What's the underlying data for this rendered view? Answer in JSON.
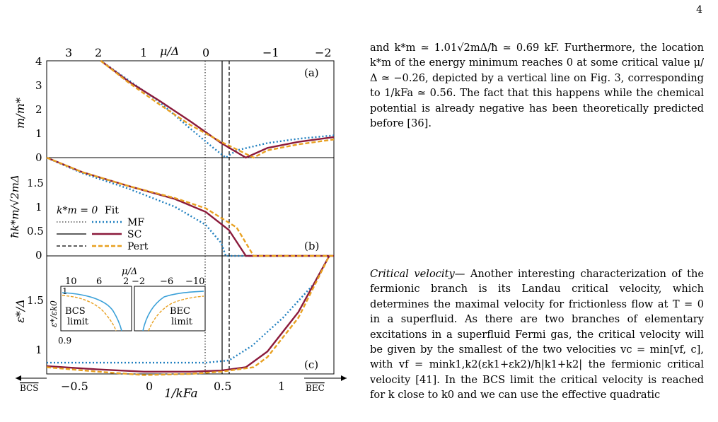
{
  "page_number": "4",
  "figure": {
    "top_axis": {
      "label": "μ/Δ",
      "ticks": [
        "3",
        "2",
        "1",
        "0",
        "−1",
        "−2"
      ],
      "tick_values": [
        3,
        2,
        1,
        0,
        -1,
        -2
      ]
    },
    "bottom_axis": {
      "label": "1/kFa",
      "ticks": [
        "−0.5",
        "0",
        "0.5",
        "1"
      ],
      "tick_values": [
        -0.5,
        0,
        0.5,
        1
      ],
      "bcs_label": "BCS",
      "bec_label": "BEC"
    },
    "panel_a": {
      "tag": "(a)",
      "ylabel": "m/m*",
      "yticks": [
        "0",
        "1",
        "2",
        "3",
        "4"
      ]
    },
    "panel_b": {
      "tag": "(b)",
      "ylabel": "ħk*m/√2mΔ",
      "yticks": [
        "0",
        "0.5",
        "1",
        "1.5"
      ],
      "legend": {
        "col_header_left": "k*m = 0",
        "col_header_right": "Fit",
        "entries": [
          "MF",
          "SC",
          "Pert"
        ]
      }
    },
    "panel_c": {
      "tag": "(c)",
      "ylabel": "ε*/Δ",
      "yticks": [
        "1",
        "1.5"
      ],
      "inset": {
        "top_label": "μ/Δ",
        "ticks": [
          "10",
          "6",
          "2",
          "−2",
          "−6",
          "−10"
        ],
        "ylabel": "ε*/εk0",
        "yticks": [
          "1",
          "0.9"
        ],
        "left_box_label": [
          "BCS",
          "limit"
        ],
        "right_box_label": [
          "BEC",
          "limit"
        ]
      }
    },
    "colors": {
      "MF": "#1f7fbf",
      "SC": "#8b1a3b",
      "Pert": "#e8a020",
      "inset_fit": "#3aa0d8"
    }
  },
  "chart_data": [
    {
      "type": "line",
      "panel": "a",
      "xlabel": "1/kFa",
      "ylabel": "m/m*",
      "xlim": [
        -0.73,
        1.13
      ],
      "ylim": [
        0,
        4
      ],
      "vlines": {
        "dotted": 0.43,
        "solid": 0.56,
        "dashed": 0.61
      },
      "series": [
        {
          "name": "MF",
          "x": [
            -0.38,
            -0.2,
            0,
            0.2,
            0.35,
            0.43,
            0.5,
            0.7,
            0.9,
            1.13
          ],
          "y": [
            4,
            3.2,
            2.3,
            1.2,
            0.4,
            0.0,
            0.3,
            0.6,
            0.78,
            0.92
          ]
        },
        {
          "name": "SC",
          "x": [
            -0.38,
            -0.2,
            0,
            0.2,
            0.4,
            0.56,
            0.7,
            0.9,
            1.13
          ],
          "y": [
            4,
            3.15,
            2.35,
            1.5,
            0.6,
            0.0,
            0.4,
            0.65,
            0.85
          ]
        },
        {
          "name": "Pert",
          "x": [
            -0.38,
            -0.2,
            0,
            0.2,
            0.4,
            0.61,
            0.7,
            0.9,
            1.13
          ],
          "y": [
            4,
            3.1,
            2.2,
            1.35,
            0.65,
            0.0,
            0.3,
            0.55,
            0.75
          ]
        }
      ]
    },
    {
      "type": "line",
      "panel": "b",
      "xlabel": "1/kFa",
      "ylabel": "ħk*m/√2mΔ",
      "xlim": [
        -0.73,
        1.13
      ],
      "ylim": [
        0,
        1.9
      ],
      "series": [
        {
          "name": "MF",
          "x": [
            -0.73,
            -0.5,
            -0.2,
            0.1,
            0.3,
            0.4,
            0.43,
            1.13
          ],
          "y": [
            1.9,
            1.6,
            1.3,
            0.95,
            0.6,
            0.25,
            0.0,
            0.0
          ]
        },
        {
          "name": "SC",
          "x": [
            -0.73,
            -0.5,
            -0.2,
            0.1,
            0.3,
            0.45,
            0.56,
            1.13
          ],
          "y": [
            1.9,
            1.62,
            1.35,
            1.1,
            0.85,
            0.5,
            0.0,
            0.0
          ]
        },
        {
          "name": "Pert",
          "x": [
            -0.73,
            -0.5,
            -0.2,
            0.1,
            0.3,
            0.5,
            0.61,
            1.13
          ],
          "y": [
            1.9,
            1.62,
            1.35,
            1.12,
            0.92,
            0.55,
            0.0,
            0.0
          ]
        }
      ]
    },
    {
      "type": "line",
      "panel": "c",
      "xlabel": "1/kFa",
      "ylabel": "ε*/Δ",
      "xlim": [
        -0.73,
        1.13
      ],
      "ylim": [
        0.9,
        1.95
      ],
      "series": [
        {
          "name": "MF",
          "x": [
            -0.73,
            0.3,
            0.45,
            0.6,
            0.8,
            1.0,
            1.1
          ],
          "y": [
            1.0,
            1.0,
            1.02,
            1.15,
            1.4,
            1.7,
            1.95
          ]
        },
        {
          "name": "SC",
          "x": [
            -0.73,
            -0.4,
            -0.1,
            0.2,
            0.4,
            0.56,
            0.7,
            0.9,
            1.1
          ],
          "y": [
            0.97,
            0.94,
            0.92,
            0.92,
            0.93,
            0.96,
            1.1,
            1.45,
            1.95
          ]
        },
        {
          "name": "Pert",
          "x": [
            -0.73,
            -0.4,
            -0.1,
            0.2,
            0.4,
            0.61,
            0.7,
            0.9,
            1.1
          ],
          "y": [
            0.96,
            0.92,
            0.89,
            0.9,
            0.92,
            0.96,
            1.05,
            1.4,
            1.95
          ]
        }
      ]
    }
  ],
  "text": {
    "para1": "and k*m ≃ 1.01√2mΔ/ħ ≃ 0.69 kF. Furthermore, the location k*m of the energy minimum reaches 0 at some critical value μ/Δ ≃ −0.26, depicted by a vertical line on Fig. 3, corresponding to 1/kFa ≃ 0.56. The fact that this happens while the chemical potential is already negative has been theoretically predicted before [36].",
    "para2_heading": "Critical velocity—",
    "para2": " Another interesting characterization of the fermionic branch is its Landau critical velocity, which determines the maximal velocity for frictionless flow at T = 0 in a superfluid. As there are two branches of elementary excitations in a superfluid Fermi gas, the critical velocity will be given by the smallest of the two velocities vc = min[vf, c], with vf = mink1,k2(εk1+εk2)/ħ|k1+k2| the fermionic critical velocity [41]. In the BCS limit the critical velocity is reached for k close to k0 and we can use the effective quadratic"
  }
}
